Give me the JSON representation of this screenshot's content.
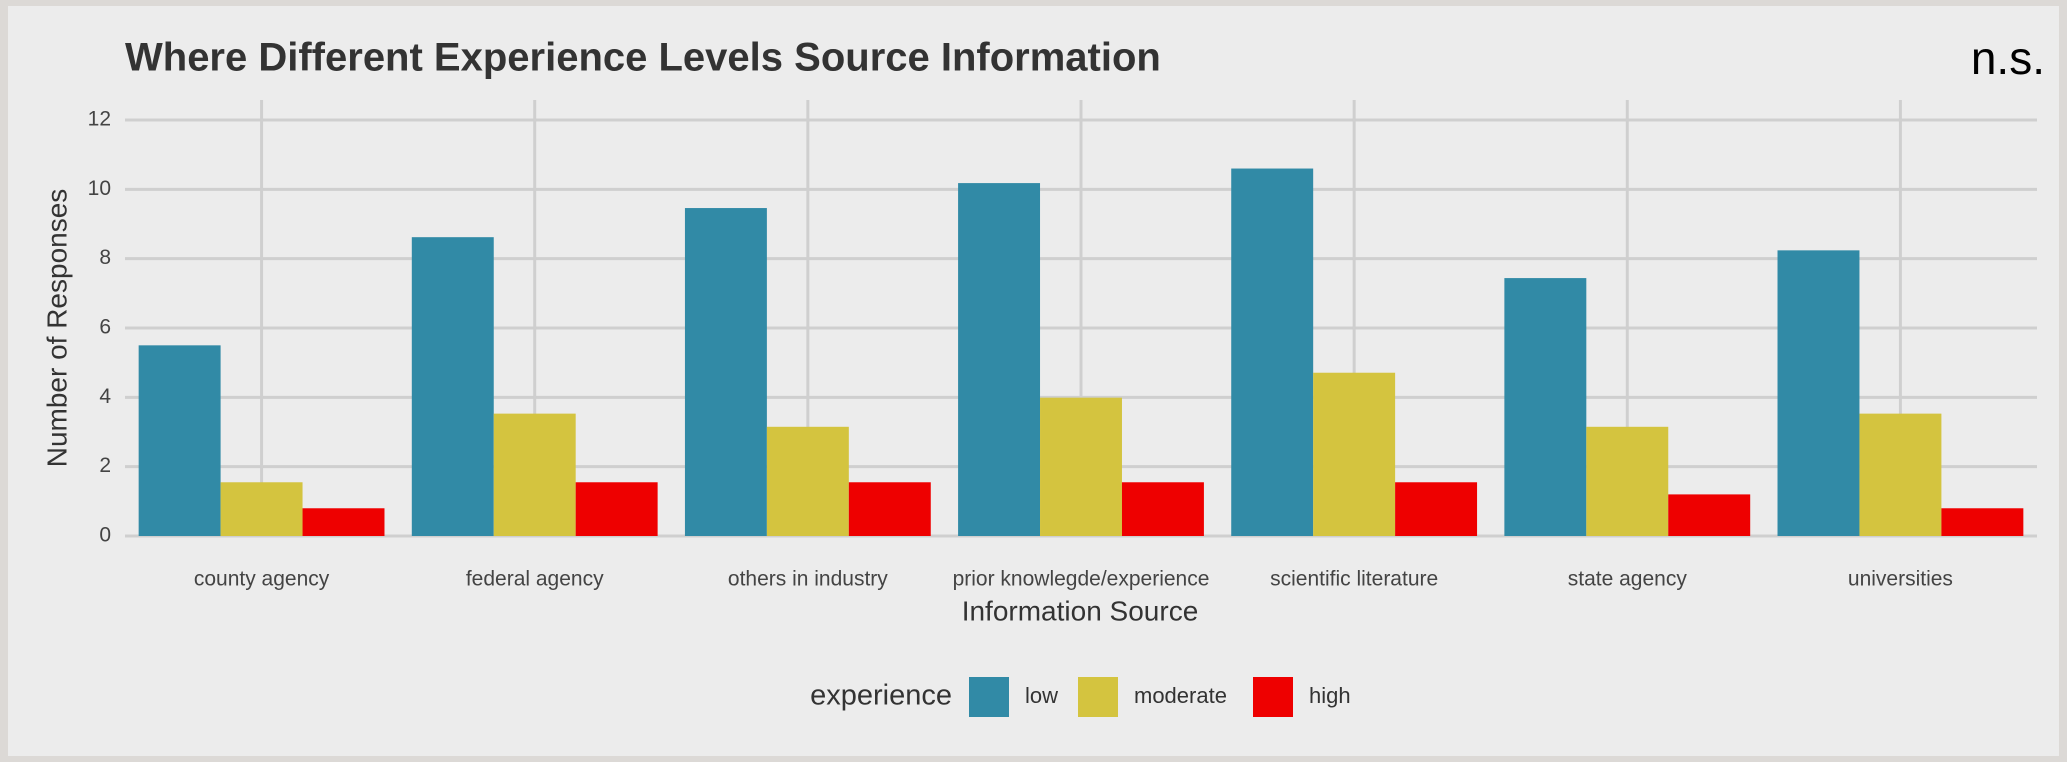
{
  "chart_data": {
    "type": "bar",
    "title": "Where Different Experience Levels Source Information",
    "annotation": "n.s.",
    "x_label": "Information Source",
    "y_label": "Number of Responses",
    "legend_title": "experience",
    "categories": [
      "county agency",
      "federal agency",
      "others in industry",
      "prior knowlegde/experience",
      "scientific literature",
      "state agency",
      "universities"
    ],
    "series": [
      {
        "name": "low",
        "color": "#318aa6",
        "values": [
          5.5,
          8.62,
          9.46,
          10.18,
          10.6,
          7.44,
          8.24
        ]
      },
      {
        "name": "moderate",
        "color": "#d4c43f",
        "values": [
          1.55,
          3.53,
          3.15,
          3.99,
          4.71,
          3.15,
          3.53
        ]
      },
      {
        "name": "high",
        "color": "#ee0000",
        "values": [
          0.8,
          1.55,
          1.55,
          1.55,
          1.55,
          1.2,
          0.8
        ]
      }
    ],
    "ylim": [
      0,
      12
    ],
    "yticks": [
      0,
      2,
      4,
      6,
      8,
      10,
      12
    ],
    "grid": true,
    "legend": "bottom"
  }
}
